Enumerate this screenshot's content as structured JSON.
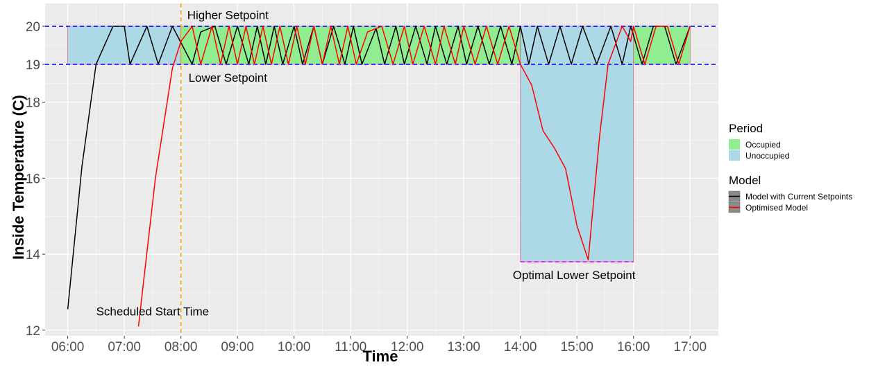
{
  "chart_data": {
    "type": "line",
    "xlabel": "Time",
    "ylabel": "Inside Temperature (C)",
    "xlim": [
      5.6,
      17.5
    ],
    "ylim": [
      11.85,
      20.6
    ],
    "x_ticks": [
      6,
      7,
      8,
      9,
      10,
      11,
      12,
      13,
      14,
      15,
      16,
      17
    ],
    "x_tick_labels": [
      "06:00",
      "07:00",
      "08:00",
      "09:00",
      "10:00",
      "11:00",
      "12:00",
      "13:00",
      "14:00",
      "15:00",
      "16:00",
      "17:00"
    ],
    "y_ticks": [
      12,
      14,
      16,
      18,
      19,
      20
    ],
    "y_tick_labels": [
      "12",
      "14",
      "16",
      "18",
      "19",
      "20"
    ],
    "grid": true,
    "background": "#ebebeb",
    "periods": [
      {
        "period": "Unoccupied",
        "x0": 6.0,
        "x1": 8.0,
        "y0": 19,
        "y1": 20
      },
      {
        "period": "Occupied",
        "x0": 8.0,
        "x1": 14.0,
        "y0": 19,
        "y1": 20
      },
      {
        "period": "Unoccupied",
        "x0": 14.0,
        "x1": 16.0,
        "y0": 13.8,
        "y1": 20
      },
      {
        "period": "Occupied",
        "x0": 16.0,
        "x1": 17.0,
        "y0": 19,
        "y1": 20
      }
    ],
    "reference_lines": [
      {
        "type": "hline",
        "y": 20,
        "color": "#0000ff",
        "dash": "dashed"
      },
      {
        "type": "hline",
        "y": 19,
        "color": "#0000ff",
        "dash": "dashed"
      },
      {
        "type": "hline",
        "y": 13.8,
        "x0": 14.0,
        "x1": 16.0,
        "color": "#ff00ff",
        "dash": "dashed"
      },
      {
        "type": "vline",
        "x": 8.0,
        "color": "#ffa500",
        "dash": "dashed"
      }
    ],
    "annotations": [
      {
        "text": "Higher Setpoint",
        "x": 8.83,
        "y": 20.3
      },
      {
        "text": "Lower Setpoint",
        "x": 8.83,
        "y": 18.65
      },
      {
        "text": "Optimal Lower Setpoint",
        "x": 14.95,
        "y": 13.45
      },
      {
        "text": "Scheduled Start Time",
        "x": 7.5,
        "y": 12.5
      }
    ],
    "series": [
      {
        "name": "Model with Current Setpoints",
        "color": "#000000",
        "x": [
          6.0,
          6.25,
          6.5,
          6.8,
          7.0,
          7.1,
          7.4,
          7.6,
          7.85,
          8.2,
          8.35,
          8.6,
          8.8,
          9.0,
          9.2,
          9.35,
          9.5,
          9.65,
          9.8,
          10.0,
          10.15,
          10.35,
          10.5,
          10.7,
          10.9,
          11.05,
          11.2,
          11.45,
          11.6,
          11.8,
          11.95,
          12.15,
          12.35,
          12.5,
          12.7,
          12.9,
          13.05,
          13.25,
          13.45,
          13.65,
          13.85,
          14.0,
          14.15,
          14.3,
          14.5,
          14.7,
          14.9,
          15.1,
          15.35,
          15.6,
          15.8,
          15.95,
          16.15,
          16.35,
          16.55,
          16.75,
          17.0
        ],
        "y": [
          12.55,
          16.3,
          19.0,
          20.0,
          20.0,
          19.0,
          20.0,
          19.0,
          20.0,
          19.0,
          19.85,
          20.0,
          19.0,
          20.0,
          19.0,
          20.0,
          19.0,
          20.0,
          19.0,
          20.0,
          19.0,
          20.0,
          19.0,
          20.0,
          19.0,
          20.0,
          19.0,
          19.95,
          19.0,
          20.0,
          19.0,
          20.0,
          19.0,
          20.0,
          19.0,
          20.0,
          19.0,
          20.0,
          19.0,
          20.0,
          19.0,
          20.0,
          19.0,
          20.0,
          19.0,
          20.0,
          19.0,
          20.0,
          19.0,
          20.0,
          19.0,
          20.0,
          19.0,
          20.0,
          20.0,
          19.0,
          20.0
        ]
      },
      {
        "name": "Optimised Model",
        "color": "#ff0000",
        "x": [
          7.25,
          7.55,
          7.85,
          8.0,
          8.2,
          8.35,
          8.55,
          8.7,
          8.85,
          9.0,
          9.15,
          9.3,
          9.45,
          9.6,
          9.75,
          9.9,
          10.05,
          10.2,
          10.35,
          10.5,
          10.65,
          10.8,
          10.95,
          11.1,
          11.3,
          11.55,
          11.75,
          11.95,
          12.1,
          12.3,
          12.5,
          12.65,
          12.85,
          13.0,
          13.2,
          13.4,
          13.6,
          13.8,
          14.0,
          14.2,
          14.4,
          14.6,
          14.8,
          15.0,
          15.2,
          15.4,
          15.55,
          15.8,
          15.95,
          16.0,
          16.2,
          16.4,
          16.6,
          16.8,
          17.0
        ],
        "y": [
          12.1,
          16.0,
          18.9,
          19.6,
          20.0,
          19.0,
          20.0,
          19.0,
          20.0,
          19.0,
          20.0,
          19.0,
          20.0,
          19.0,
          20.0,
          19.0,
          20.0,
          19.0,
          20.0,
          19.0,
          20.0,
          19.0,
          20.0,
          19.0,
          19.85,
          20.0,
          19.0,
          20.0,
          19.0,
          20.0,
          19.0,
          20.0,
          19.0,
          20.0,
          19.0,
          20.0,
          19.0,
          20.0,
          19.0,
          18.45,
          17.25,
          16.8,
          16.25,
          14.75,
          13.85,
          17.1,
          19.0,
          20.0,
          19.6,
          20.0,
          19.0,
          20.0,
          20.0,
          19.0,
          20.0
        ]
      }
    ],
    "legend": {
      "placement": "right",
      "groups": [
        {
          "title": "Period",
          "items": [
            {
              "label": "Occupied",
              "color": "#90ee90"
            },
            {
              "label": "Unoccupied",
              "color": "#add8e6"
            }
          ]
        },
        {
          "title": "Model",
          "items": [
            {
              "label": "Model with Current Setpoints",
              "color": "#000000"
            },
            {
              "label": "Optimised Model",
              "color": "#ff0000"
            }
          ]
        }
      ]
    },
    "colors": {
      "occupied": "#90ee90",
      "unoccupied": "#add8e6",
      "period_border": "#e06080",
      "grid_major": "#ffffff",
      "tick_label": "#4d4d4d"
    }
  }
}
